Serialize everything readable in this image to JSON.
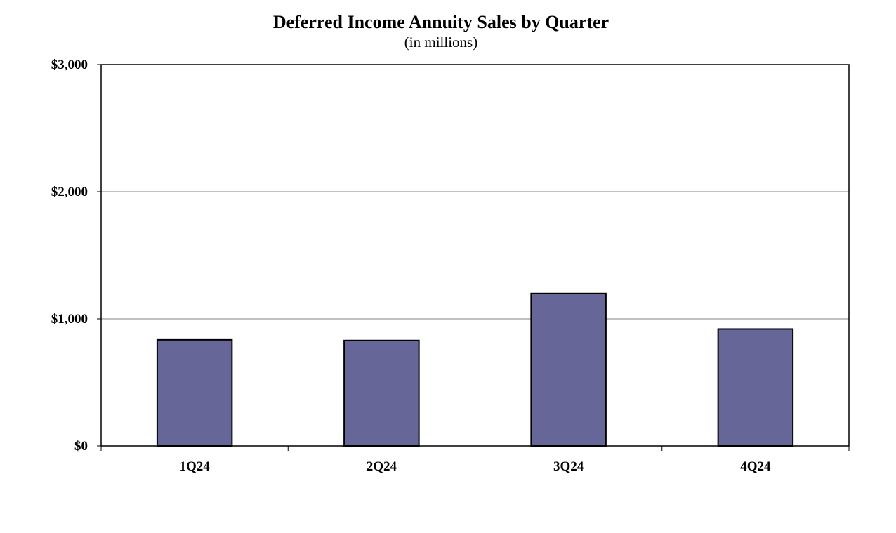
{
  "chart_data": {
    "type": "bar",
    "title": "Deferred Income Annuity Sales by Quarter",
    "subtitle": "(in millions)",
    "xlabel": "",
    "ylabel": "",
    "categories": [
      "1Q24",
      "2Q24",
      "3Q24",
      "4Q24"
    ],
    "values": [
      835,
      830,
      1200,
      920
    ],
    "ylim": [
      0,
      3000
    ],
    "yticks": [
      0,
      1000,
      2000,
      3000
    ],
    "ytick_labels": [
      "$0",
      "$1,000",
      "$2,000",
      "$3,000"
    ],
    "grid": true,
    "legend": "none",
    "bar_color": "#676698",
    "bar_edge_color": "#000000"
  }
}
